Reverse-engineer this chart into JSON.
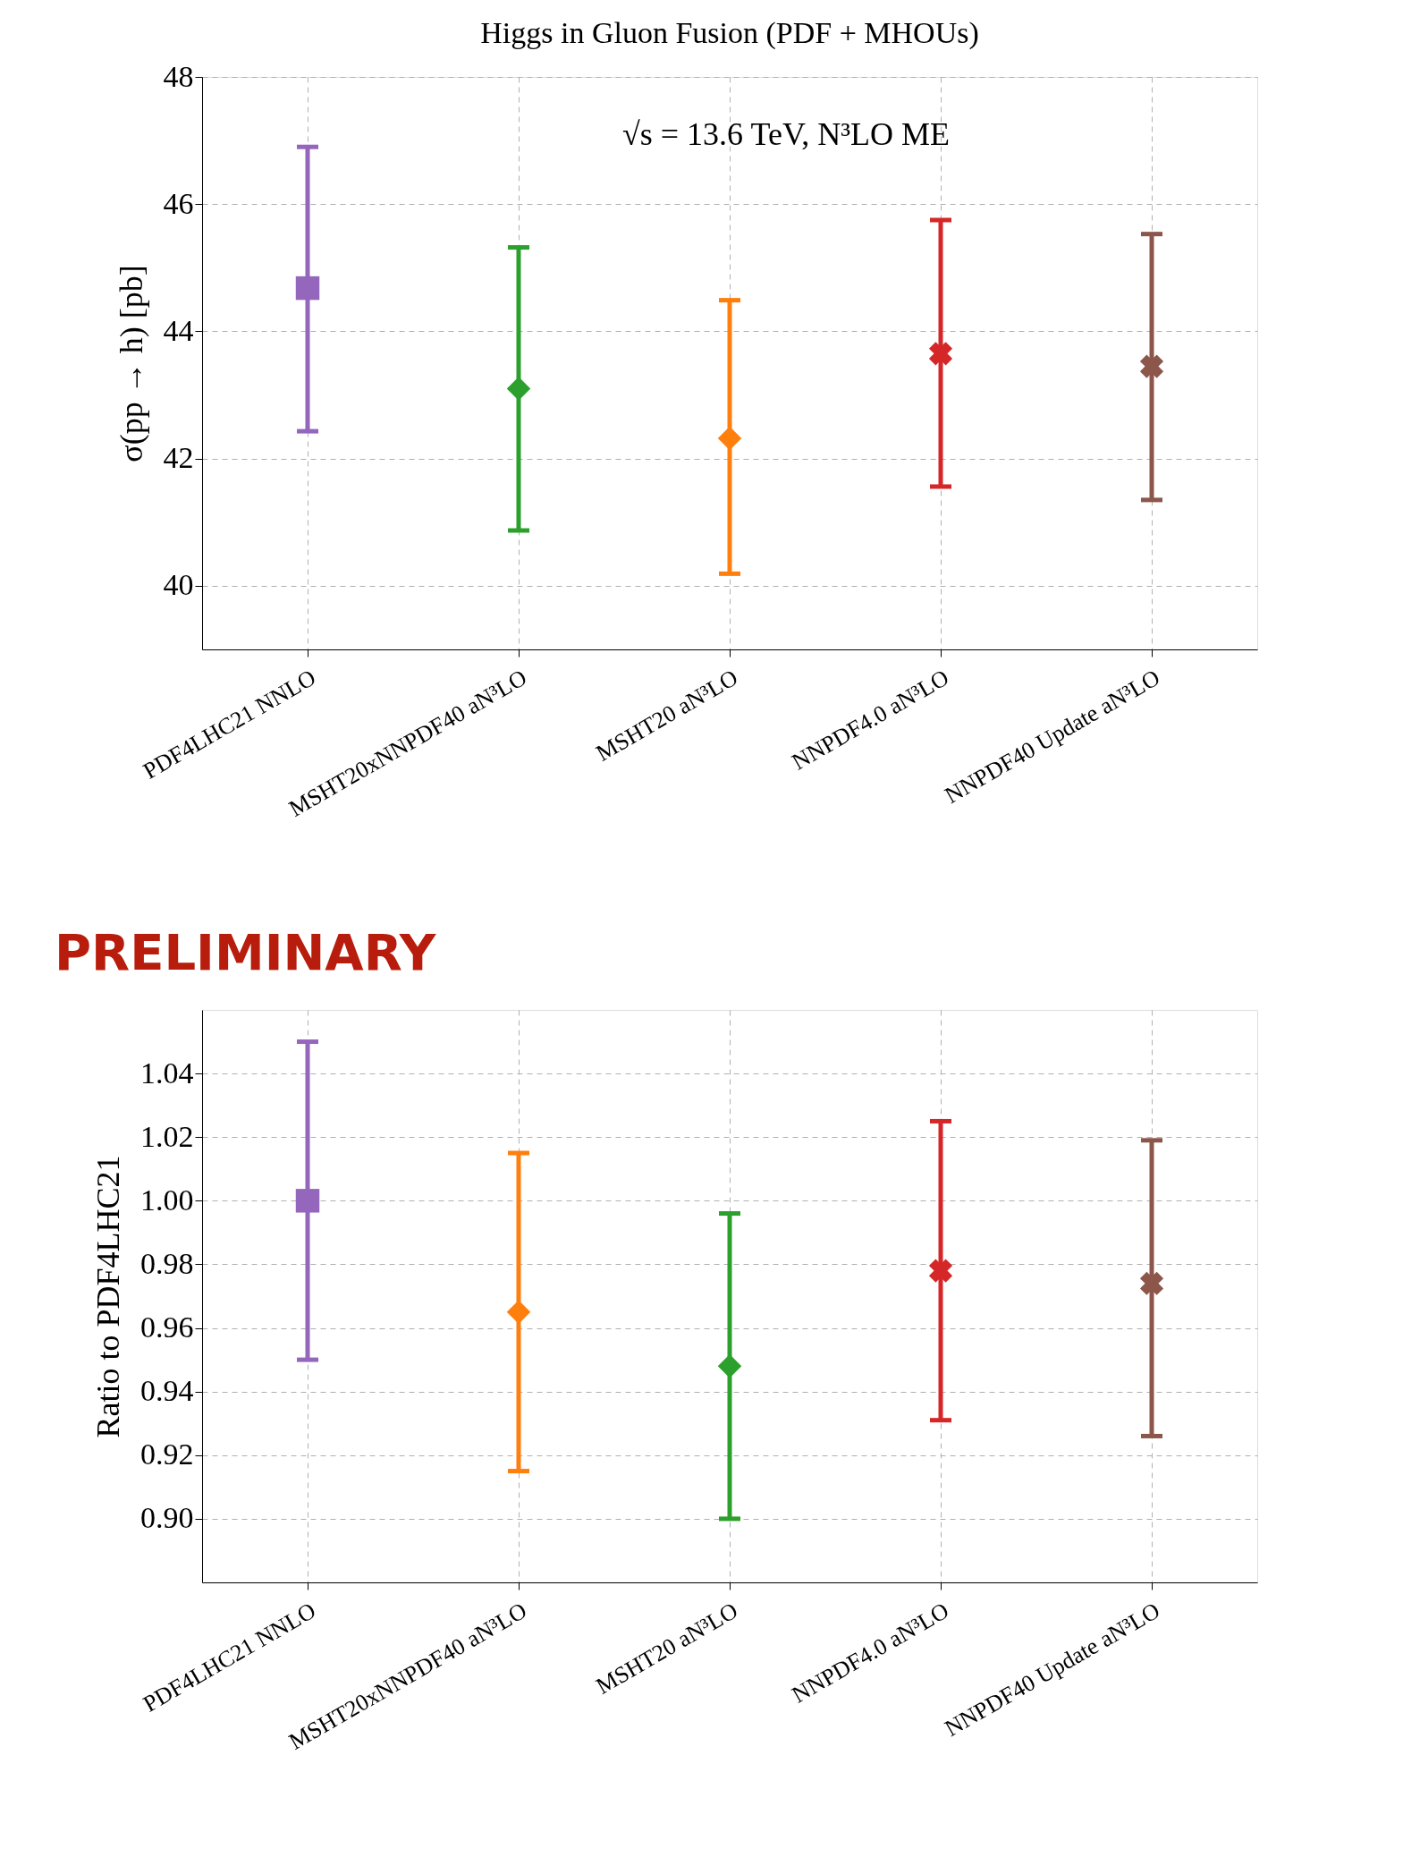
{
  "chart_data": [
    {
      "type": "scatter",
      "title": "Higgs in Gluon Fusion (PDF + MHOUs)",
      "ylabel": "σ(pp → h) [pb]",
      "categories": [
        "PDF4LHC21 NNLO",
        "MSHT20xNNPDF40 aN³LO",
        "MSHT20 aN³LO",
        "NNPDF4.0 aN³LO",
        "NNPDF40 Update aN³LO"
      ],
      "series": [
        {
          "color": "#9467bd",
          "marker": "square",
          "values": [
            44.68,
            null,
            null,
            null,
            null
          ],
          "errors": [
            [
              42.43,
              46.9
            ],
            null,
            null,
            null,
            null
          ]
        },
        {
          "color": "#2ca02c",
          "marker": "diamond",
          "values": [
            null,
            43.1,
            null,
            null,
            null
          ],
          "errors": [
            null,
            [
              40.87,
              45.32
            ],
            null,
            null,
            null
          ]
        },
        {
          "color": "#ff7f0e",
          "marker": "diamond",
          "values": [
            null,
            null,
            42.32,
            null,
            null
          ],
          "errors": [
            null,
            null,
            [
              40.19,
              44.49
            ],
            null,
            null
          ]
        },
        {
          "color": "#d62728",
          "marker": "cross",
          "values": [
            null,
            null,
            null,
            43.65,
            null
          ],
          "errors": [
            null,
            null,
            null,
            [
              41.56,
              45.75
            ],
            null
          ]
        },
        {
          "color": "#8c564b",
          "marker": "cross",
          "values": [
            null,
            null,
            null,
            null,
            43.45
          ],
          "errors": [
            null,
            null,
            null,
            null,
            [
              41.35,
              45.53
            ]
          ]
        }
      ],
      "ylim": [
        39,
        48
      ],
      "yticks": [
        40,
        42,
        44,
        46,
        48
      ],
      "grid": true,
      "annotations": [
        "√s = 13.6 TeV,  N³LO ME"
      ]
    },
    {
      "type": "scatter",
      "ylabel": "Ratio to PDF4LHC21",
      "categories": [
        "PDF4LHC21 NNLO",
        "MSHT20xNNPDF40 aN³LO",
        "MSHT20 aN³LO",
        "NNPDF4.0 aN³LO",
        "NNPDF40 Update aN³LO"
      ],
      "series": [
        {
          "color": "#9467bd",
          "marker": "square",
          "values": [
            1.0,
            null,
            null,
            null,
            null
          ],
          "errors": [
            [
              0.95,
              1.05
            ],
            null,
            null,
            null,
            null
          ]
        },
        {
          "color": "#ff7f0e",
          "marker": "diamond",
          "values": [
            null,
            0.965,
            null,
            null,
            null
          ],
          "errors": [
            null,
            [
              0.915,
              1.015
            ],
            null,
            null,
            null
          ]
        },
        {
          "color": "#2ca02c",
          "marker": "diamond",
          "values": [
            null,
            null,
            0.948,
            null,
            null
          ],
          "errors": [
            null,
            null,
            [
              0.9,
              0.996
            ],
            null,
            null
          ]
        },
        {
          "color": "#d62728",
          "marker": "cross",
          "values": [
            null,
            null,
            null,
            0.978,
            null
          ],
          "errors": [
            null,
            null,
            null,
            [
              0.931,
              1.025
            ],
            null
          ]
        },
        {
          "color": "#8c564b",
          "marker": "cross",
          "values": [
            null,
            null,
            null,
            null,
            0.974
          ],
          "errors": [
            null,
            null,
            null,
            null,
            [
              0.926,
              1.019
            ]
          ]
        }
      ],
      "ylim": [
        0.88,
        1.06
      ],
      "yticks": [
        {
          "value": 0.9,
          "label": "0.90"
        },
        0.92,
        0.94,
        0.96,
        0.98,
        {
          "value": 1.0,
          "label": "1.00"
        },
        1.02,
        1.04
      ],
      "grid": true,
      "annotations": [
        "PRELIMINARY"
      ]
    }
  ]
}
